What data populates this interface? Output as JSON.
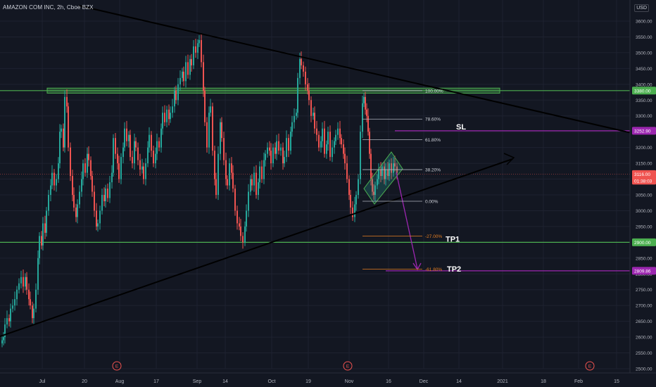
{
  "header": {
    "symbol_line": "AMAZON COM INC, 2h, Cboe BZX",
    "currency_label": "USD",
    "currency_number": "3"
  },
  "chart_data": {
    "type": "candlestick",
    "title": "AMAZON COM INC, 2h, Cboe BZX",
    "y_axis": {
      "ticks": [
        "3600.00",
        "3550.00",
        "3500.00",
        "3450.00",
        "3400.00",
        "3350.00",
        "3300.00",
        "3250.00",
        "3200.00",
        "3150.00",
        "3100.00",
        "3050.00",
        "3000.00",
        "2950.00",
        "2900.00",
        "2850.00",
        "2800.00",
        "2750.00",
        "2700.00",
        "2650.00",
        "2600.00",
        "2550.00",
        "2500.00"
      ],
      "range": [
        2495,
        3620
      ]
    },
    "x_axis": {
      "ticks": [
        "Jul",
        "20",
        "Aug",
        "17",
        "Sep",
        "14",
        "Oct",
        "19",
        "Nov",
        "16",
        "Dec",
        "14",
        "2021",
        "18",
        "Feb",
        "15"
      ]
    },
    "price_labels": [
      {
        "text": "3380.00",
        "color": "#4caf50",
        "value": 3380
      },
      {
        "text": "3252.90",
        "color": "#9c27b0",
        "value": 3252.9
      },
      {
        "text": "3116.00",
        "color": "#ef5350",
        "value": 3116
      },
      {
        "text": "01:38:03",
        "color": "#ef5350",
        "value": 3095
      },
      {
        "text": "2900.00",
        "color": "#4caf50",
        "value": 2900
      },
      {
        "text": "2809.86",
        "color": "#9c27b0",
        "value": 2809.86
      }
    ],
    "fib_levels": [
      {
        "label": "100.00%",
        "value": 3380
      },
      {
        "label": "78.60%",
        "value": 3290
      },
      {
        "label": "61.80%",
        "value": 3225
      },
      {
        "label": "38.20%",
        "value": 3130
      },
      {
        "label": "0.00%",
        "value": 3030
      },
      {
        "label": "-27.00%",
        "value": 2920
      },
      {
        "label": "-61.80%",
        "value": 2815
      }
    ],
    "annotations": {
      "sl": "SL",
      "tp1": "TP1",
      "tp2": "TP2",
      "earnings_marker": "E"
    },
    "colors": {
      "up": "#26a69a",
      "down": "#ef5350",
      "support": "#4caf50",
      "target": "#9c27b0",
      "trend": "#000000",
      "fib": "#b2b5be",
      "fib_ext": "#e67e22",
      "background": "#131722"
    },
    "candles": [
      [
        3,
        2590
      ],
      [
        5,
        2600
      ],
      [
        7,
        2640
      ],
      [
        10,
        2660
      ],
      [
        13,
        2650
      ],
      [
        15,
        2690
      ],
      [
        18,
        2700
      ],
      [
        21,
        2720
      ],
      [
        24,
        2750
      ],
      [
        27,
        2770
      ],
      [
        30,
        2790
      ],
      [
        33,
        2760
      ],
      [
        36,
        2790
      ],
      [
        38,
        2750
      ],
      [
        41,
        2720
      ],
      [
        43,
        2700
      ],
      [
        46,
        2660
      ],
      [
        48,
        2690
      ],
      [
        51,
        2750
      ],
      [
        54,
        2850
      ],
      [
        56,
        2920
      ],
      [
        59,
        2890
      ],
      [
        61,
        2960
      ],
      [
        64,
        2930
      ],
      [
        66,
        3000
      ],
      [
        69,
        3050
      ],
      [
        72,
        3080
      ],
      [
        74,
        3120
      ],
      [
        77,
        3080
      ],
      [
        80,
        3100
      ],
      [
        83,
        3150
      ],
      [
        85,
        3250
      ],
      [
        87,
        3260
      ],
      [
        90,
        3200
      ],
      [
        92,
        3360
      ],
      [
        95,
        3330
      ],
      [
        97,
        3200
      ],
      [
        100,
        3110
      ],
      [
        103,
        3050
      ],
      [
        105,
        3010
      ],
      [
        108,
        2980
      ],
      [
        110,
        3020
      ],
      [
        113,
        3060
      ],
      [
        116,
        3100
      ],
      [
        118,
        3150
      ],
      [
        121,
        3120
      ],
      [
        124,
        3180
      ],
      [
        126,
        3160
      ],
      [
        129,
        3110
      ],
      [
        131,
        3060
      ],
      [
        134,
        3000
      ],
      [
        137,
        2950
      ],
      [
        139,
        2960
      ],
      [
        142,
        3000
      ],
      [
        145,
        3050
      ],
      [
        148,
        3030
      ],
      [
        150,
        3070
      ],
      [
        153,
        3040
      ],
      [
        156,
        3090
      ],
      [
        159,
        3120
      ],
      [
        161,
        3230
      ],
      [
        164,
        3180
      ],
      [
        167,
        3150
      ],
      [
        169,
        3100
      ],
      [
        172,
        3170
      ],
      [
        175,
        3200
      ],
      [
        177,
        3260
      ],
      [
        180,
        3220
      ],
      [
        183,
        3240
      ],
      [
        185,
        3170
      ],
      [
        188,
        3150
      ],
      [
        191,
        3220
      ],
      [
        193,
        3200
      ],
      [
        196,
        3160
      ],
      [
        199,
        3130
      ],
      [
        202,
        3140
      ],
      [
        204,
        3100
      ],
      [
        207,
        3150
      ],
      [
        210,
        3200
      ],
      [
        212,
        3240
      ],
      [
        215,
        3190
      ],
      [
        218,
        3150
      ],
      [
        221,
        3180
      ],
      [
        223,
        3220
      ],
      [
        226,
        3200
      ],
      [
        229,
        3260
      ],
      [
        231,
        3310
      ],
      [
        234,
        3280
      ],
      [
        237,
        3320
      ],
      [
        240,
        3290
      ],
      [
        242,
        3310
      ],
      [
        245,
        3330
      ],
      [
        248,
        3380
      ],
      [
        250,
        3350
      ],
      [
        253,
        3400
      ],
      [
        256,
        3420
      ],
      [
        259,
        3440
      ],
      [
        261,
        3410
      ],
      [
        264,
        3470
      ],
      [
        267,
        3430
      ],
      [
        270,
        3480
      ],
      [
        272,
        3460
      ],
      [
        275,
        3520
      ],
      [
        278,
        3500
      ],
      [
        281,
        3530
      ],
      [
        283,
        3540
      ],
      [
        286,
        3470
      ],
      [
        289,
        3380
      ],
      [
        291,
        3280
      ],
      [
        294,
        3200
      ],
      [
        297,
        3310
      ],
      [
        299,
        3330
      ],
      [
        302,
        3190
      ],
      [
        305,
        3100
      ],
      [
        307,
        3050
      ],
      [
        310,
        3180
      ],
      [
        313,
        3280
      ],
      [
        315,
        3230
      ],
      [
        318,
        3160
      ],
      [
        321,
        3100
      ],
      [
        323,
        3080
      ],
      [
        326,
        3150
      ],
      [
        329,
        3120
      ],
      [
        331,
        3070
      ],
      [
        334,
        3000
      ],
      [
        337,
        2960
      ],
      [
        340,
        2950
      ],
      [
        342,
        2920
      ],
      [
        345,
        2900
      ],
      [
        348,
        2950
      ],
      [
        350,
        3000
      ],
      [
        353,
        3060
      ],
      [
        356,
        3100
      ],
      [
        358,
        3080
      ],
      [
        361,
        3120
      ],
      [
        364,
        3050
      ],
      [
        367,
        3090
      ],
      [
        369,
        3140
      ],
      [
        372,
        3100
      ],
      [
        375,
        3160
      ],
      [
        377,
        3180
      ],
      [
        380,
        3200
      ],
      [
        383,
        3190
      ],
      [
        385,
        3150
      ],
      [
        388,
        3200
      ],
      [
        391,
        3180
      ],
      [
        393,
        3220
      ],
      [
        396,
        3190
      ],
      [
        399,
        3200
      ],
      [
        402,
        3150
      ],
      [
        404,
        3170
      ],
      [
        407,
        3230
      ],
      [
        410,
        3190
      ],
      [
        413,
        3250
      ],
      [
        415,
        3280
      ],
      [
        418,
        3300
      ],
      [
        421,
        3310
      ],
      [
        423,
        3420
      ],
      [
        426,
        3480
      ],
      [
        428,
        3460
      ],
      [
        431,
        3440
      ],
      [
        434,
        3400
      ],
      [
        437,
        3380
      ],
      [
        439,
        3350
      ],
      [
        442,
        3300
      ],
      [
        445,
        3310
      ],
      [
        447,
        3260
      ],
      [
        450,
        3240
      ],
      [
        453,
        3200
      ],
      [
        456,
        3220
      ],
      [
        458,
        3260
      ],
      [
        461,
        3180
      ],
      [
        464,
        3210
      ],
      [
        466,
        3250
      ],
      [
        469,
        3170
      ],
      [
        472,
        3200
      ],
      [
        475,
        3220
      ],
      [
        477,
        3240
      ],
      [
        480,
        3260
      ],
      [
        483,
        3230
      ],
      [
        485,
        3210
      ],
      [
        488,
        3180
      ],
      [
        490,
        3150
      ],
      [
        493,
        3100
      ],
      [
        496,
        3050
      ],
      [
        498,
        3010
      ],
      [
        501,
        2980
      ],
      [
        504,
        3020
      ],
      [
        506,
        3050
      ],
      [
        509,
        3100
      ],
      [
        512,
        3250
      ],
      [
        515,
        3340
      ],
      [
        517,
        3360
      ],
      [
        519,
        3320
      ],
      [
        521,
        3300
      ],
      [
        523,
        3250
      ],
      [
        525,
        3180
      ],
      [
        527,
        3100
      ],
      [
        529,
        3060
      ],
      [
        531,
        3050
      ],
      [
        533,
        3080
      ],
      [
        536,
        3100
      ],
      [
        538,
        3130
      ],
      [
        541,
        3110
      ],
      [
        543,
        3140
      ],
      [
        546,
        3100
      ],
      [
        548,
        3130
      ],
      [
        551,
        3110
      ],
      [
        553,
        3150
      ],
      [
        556,
        3120
      ],
      [
        559,
        3150
      ],
      [
        561,
        3140
      ],
      [
        564,
        3120
      ]
    ]
  }
}
